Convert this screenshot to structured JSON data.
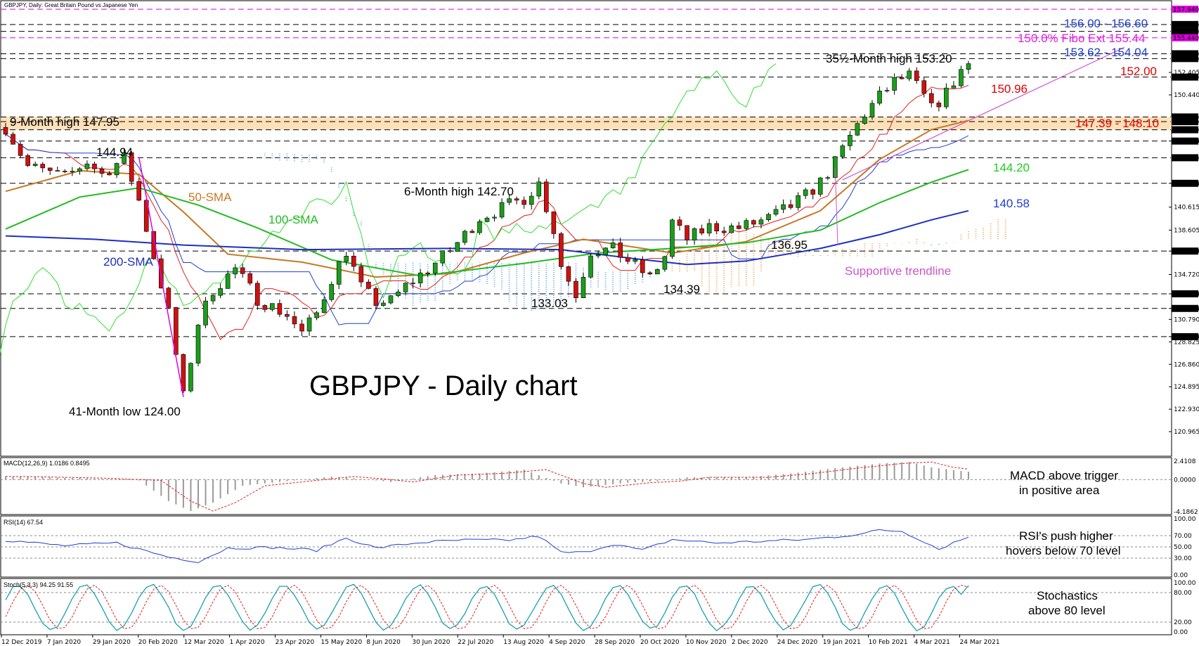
{
  "chart_data": {
    "type": "candlestick",
    "symbol_header": "GBPJPY, Daily:  Great Britain Pound vs Japanese Yen",
    "title": "GBPJPY - Daily chart",
    "ylim": [
      119.0,
      158.5
    ],
    "dates": [
      "12 Dec 2019",
      "7 Jan 2020",
      "29 Jan 2020",
      "20 Feb 2020",
      "12 Mar 2020",
      "1 Apr 2020",
      "23 Apr 2020",
      "15 May 2020",
      "8 Jun 2020",
      "30 Jun 2020",
      "22 Jul 2020",
      "13 Aug 2020",
      "4 Sep 2020",
      "28 Sep 2020",
      "20 Oct 2020",
      "10 Nov 2020",
      "2 Dec 2020",
      "24 Dec 2020",
      "19 Jan 2021",
      "10 Feb 2021",
      "4 Mar 2021",
      "24 Mar 2021"
    ],
    "price_path": [
      [
        0,
        147.6
      ],
      [
        3,
        144.2
      ],
      [
        8,
        143.2
      ],
      [
        11,
        144.6
      ],
      [
        13,
        143.5
      ],
      [
        16,
        144.9
      ],
      [
        18,
        141.2
      ],
      [
        20,
        136.3
      ],
      [
        22,
        131.4
      ],
      [
        24,
        124.0
      ],
      [
        26,
        130.5
      ],
      [
        28,
        133.4
      ],
      [
        31,
        135.2
      ],
      [
        34,
        132.6
      ],
      [
        38,
        131.2
      ],
      [
        40,
        129.6
      ],
      [
        42,
        131.3
      ],
      [
        44,
        134.4
      ],
      [
        46,
        136.8
      ],
      [
        48,
        133.6
      ],
      [
        50,
        132.3
      ],
      [
        52,
        132.4
      ],
      [
        54,
        133.7
      ],
      [
        57,
        135.2
      ],
      [
        60,
        136.8
      ],
      [
        62,
        138.2
      ],
      [
        64,
        139.7
      ],
      [
        68,
        140.8
      ],
      [
        70,
        141.4
      ],
      [
        72,
        142.7
      ],
      [
        74,
        138.6
      ],
      [
        75,
        135.5
      ],
      [
        77,
        133.0
      ],
      [
        79,
        136.8
      ],
      [
        82,
        136.9
      ],
      [
        85,
        135.5
      ],
      [
        87,
        134.4
      ],
      [
        89,
        136.3
      ],
      [
        90,
        139.3
      ],
      [
        92,
        137.8
      ],
      [
        95,
        138.9
      ],
      [
        99,
        138.8
      ],
      [
        103,
        139.6
      ],
      [
        106,
        140.7
      ],
      [
        108,
        141.6
      ],
      [
        110,
        142.8
      ],
      [
        112,
        144.5
      ],
      [
        114,
        146.8
      ],
      [
        116,
        148.8
      ],
      [
        118,
        150.3
      ],
      [
        120,
        151.6
      ],
      [
        122,
        152.1
      ],
      [
        124,
        150.3
      ],
      [
        125,
        149.2
      ],
      [
        127,
        150.6
      ],
      [
        129,
        152.6
      ],
      [
        130,
        153.2
      ]
    ],
    "bars_total": 130,
    "series": [
      {
        "name": "50-SMA",
        "color": "#c87820",
        "values": [
          [
            0,
            142.0
          ],
          [
            10,
            143.8
          ],
          [
            18,
            143.5
          ],
          [
            24,
            140.2
          ],
          [
            30,
            136.5
          ],
          [
            40,
            135.8
          ],
          [
            50,
            134.5
          ],
          [
            60,
            134.8
          ],
          [
            70,
            136.6
          ],
          [
            78,
            137.8
          ],
          [
            90,
            136.6
          ],
          [
            100,
            137.6
          ],
          [
            110,
            140.3
          ],
          [
            118,
            144.8
          ],
          [
            125,
            147.4
          ],
          [
            130,
            148.2
          ]
        ]
      },
      {
        "name": "100-SMA",
        "color": "#22bb22",
        "values": [
          [
            0,
            138.7
          ],
          [
            10,
            141.5
          ],
          [
            18,
            142.3
          ],
          [
            26,
            140.8
          ],
          [
            34,
            138.8
          ],
          [
            44,
            136.0
          ],
          [
            56,
            134.6
          ],
          [
            70,
            135.7
          ],
          [
            80,
            136.6
          ],
          [
            90,
            137.0
          ],
          [
            100,
            137.5
          ],
          [
            110,
            138.6
          ],
          [
            118,
            141.0
          ],
          [
            125,
            142.8
          ],
          [
            130,
            143.9
          ]
        ]
      },
      {
        "name": "200-SMA",
        "color": "#1f2fbf",
        "values": [
          [
            0,
            138.1
          ],
          [
            12,
            137.8
          ],
          [
            24,
            137.3
          ],
          [
            40,
            136.9
          ],
          [
            60,
            137.0
          ],
          [
            75,
            136.9
          ],
          [
            85,
            136.1
          ],
          [
            92,
            135.6
          ],
          [
            100,
            135.9
          ],
          [
            110,
            137.0
          ],
          [
            118,
            138.2
          ],
          [
            125,
            139.5
          ],
          [
            130,
            140.3
          ]
        ]
      }
    ],
    "levels": [
      {
        "price": 157.94,
        "color": "#e000e0",
        "axis_label": "157.940"
      },
      {
        "price": 156.6,
        "color": "#000000",
        "axis_label": "156.600"
      },
      {
        "price": 156.0,
        "color": "#000000",
        "axis_label": "156.000"
      },
      {
        "price": 155.44,
        "color": "#e000e0",
        "axis_label": "155.440"
      },
      {
        "price": 154.04,
        "color": "#000000",
        "axis_label": "154.040"
      },
      {
        "price": 153.62,
        "color": "#000000",
        "axis_label": "153.620"
      },
      {
        "price": 152.0,
        "color": "#000000",
        "axis_label": "152.000"
      },
      {
        "price": 148.51,
        "color": "#000000",
        "axis_label": "148.510"
      },
      {
        "price": 148.1,
        "color": "#000000",
        "axis_label": "148.100"
      },
      {
        "price": 147.39,
        "color": "#000000",
        "axis_label": "147.390"
      },
      {
        "price": 146.4,
        "color": "#000000",
        "axis_label": "146.400"
      },
      {
        "price": 144.94,
        "color": "#000000",
        "axis_label": "144.940"
      },
      {
        "price": 142.7,
        "color": "#000000",
        "axis_label": "142.700"
      },
      {
        "price": 136.77,
        "color": "#000000",
        "axis_label": "136.770"
      },
      {
        "price": 133.03,
        "color": "#000000",
        "axis_label": "133.030"
      },
      {
        "price": 131.75,
        "color": "#000000",
        "axis_label": "131.750"
      },
      {
        "price": 129.28,
        "color": "#000000",
        "axis_label": "129.280"
      }
    ],
    "price_ticks": [
      "152.405",
      "150.440",
      "146.400",
      "142.700",
      "140.615",
      "138.605",
      "136.770",
      "134.720",
      "133.030",
      "131.750",
      "130.790",
      "129.280",
      "128.825",
      "126.860",
      "124.895",
      "122.930",
      "120.965"
    ],
    "zone": {
      "from": 147.39,
      "to": 148.51,
      "color": "#ffd9a8"
    },
    "annotations": [
      {
        "text": "156.00 - 156.60",
        "color": "#1f3fd0"
      },
      {
        "text": "150.0% Fibo Ext 155.44",
        "color": "#e020e0"
      },
      {
        "text": "153.62 - 154.04",
        "color": "#1f3fd0"
      },
      {
        "text": "35½-Month high 153.20",
        "color": "#000000"
      },
      {
        "text": "152.00",
        "color": "#e00000"
      },
      {
        "text": "150.96",
        "color": "#e00000"
      },
      {
        "text": "147.39 - 148.10",
        "color": "#e00000"
      },
      {
        "text": "9-Month high 147.95",
        "color": "#000000"
      },
      {
        "text": "144.94",
        "color": "#000000"
      },
      {
        "text": "144.20",
        "color": "#22cc22"
      },
      {
        "text": "140.58",
        "color": "#1f3fd0"
      },
      {
        "text": "6-Month high 142.70",
        "color": "#000000"
      },
      {
        "text": "50-SMA",
        "color": "#c87820"
      },
      {
        "text": "100-SMA",
        "color": "#22bb22"
      },
      {
        "text": "200-SMA",
        "color": "#1f2fbf"
      },
      {
        "text": "136.95",
        "color": "#000000"
      },
      {
        "text": "Supportive trendline",
        "color": "#cc55cc"
      },
      {
        "text": "133.03",
        "color": "#000000"
      },
      {
        "text": "134.39",
        "color": "#000000"
      },
      {
        "text": "41-Month low 124.00",
        "color": "#000000"
      }
    ],
    "macd": {
      "header": "MACD(12,26,9) 1.0186 0.8495",
      "ticks": [
        "2.4108",
        "0.0000",
        "-4.1862"
      ],
      "comment": [
        "MACD above trigger",
        "in positive area"
      ],
      "path": [
        [
          0,
          0.4
        ],
        [
          10,
          0.2
        ],
        [
          18,
          -0.1
        ],
        [
          22,
          -2.8
        ],
        [
          25,
          -4.1
        ],
        [
          28,
          -3.0
        ],
        [
          32,
          -0.8
        ],
        [
          38,
          -0.2
        ],
        [
          44,
          0.4
        ],
        [
          48,
          0.1
        ],
        [
          52,
          -0.3
        ],
        [
          58,
          0.6
        ],
        [
          64,
          0.8
        ],
        [
          70,
          1.3
        ],
        [
          75,
          -0.5
        ],
        [
          78,
          -1.0
        ],
        [
          84,
          -0.4
        ],
        [
          88,
          -0.2
        ],
        [
          92,
          0.3
        ],
        [
          100,
          0.3
        ],
        [
          106,
          0.8
        ],
        [
          112,
          1.5
        ],
        [
          118,
          2.1
        ],
        [
          122,
          2.3
        ],
        [
          125,
          1.6
        ],
        [
          130,
          1.02
        ]
      ]
    },
    "rsi": {
      "header": "RSI(14) 67.54",
      "ticks": [
        "100.00",
        "70.00",
        "50.00",
        "30.00",
        "0.00"
      ],
      "comment": [
        "RSI's push higher",
        "hovers below 70 level"
      ],
      "path": [
        [
          0,
          62
        ],
        [
          8,
          52
        ],
        [
          15,
          57
        ],
        [
          22,
          32
        ],
        [
          26,
          24
        ],
        [
          30,
          48
        ],
        [
          36,
          49
        ],
        [
          42,
          44
        ],
        [
          46,
          66
        ],
        [
          50,
          48
        ],
        [
          56,
          58
        ],
        [
          62,
          62
        ],
        [
          68,
          62
        ],
        [
          72,
          69
        ],
        [
          75,
          40
        ],
        [
          78,
          40
        ],
        [
          82,
          55
        ],
        [
          86,
          44
        ],
        [
          90,
          63
        ],
        [
          96,
          57
        ],
        [
          102,
          60
        ],
        [
          108,
          63
        ],
        [
          112,
          68
        ],
        [
          116,
          74
        ],
        [
          118,
          80
        ],
        [
          121,
          78
        ],
        [
          124,
          60
        ],
        [
          126,
          46
        ],
        [
          128,
          58
        ],
        [
          130,
          67.5
        ]
      ]
    },
    "stoch": {
      "header": "Stoch(5,3,3) 94.25 91.55",
      "ticks": [
        "100.00",
        "80.00",
        "20.00",
        "0.00"
      ],
      "comment": [
        "Stochastics",
        "above 80 level"
      ],
      "period": 9,
      "last": [
        94.25,
        91.55
      ]
    },
    "stoch_levels": [
      80,
      20
    ],
    "rsi_levels": [
      70,
      50,
      30
    ]
  }
}
